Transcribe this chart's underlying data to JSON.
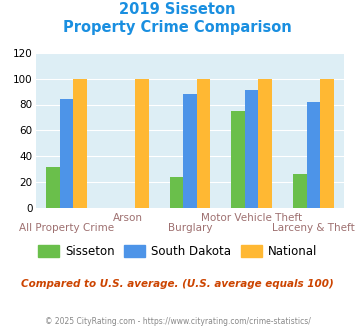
{
  "title_line1": "2019 Sisseton",
  "title_line2": "Property Crime Comparison",
  "title_color": "#1a8fe0",
  "categories": [
    "All Property Crime",
    "Arson",
    "Burglary",
    "Motor Vehicle Theft",
    "Larceny & Theft"
  ],
  "sisseton": [
    32,
    0,
    24,
    75,
    26
  ],
  "south_dakota": [
    84,
    0,
    88,
    91,
    82
  ],
  "national": [
    100,
    100,
    100,
    100,
    100
  ],
  "sisseton_color": "#6abf4b",
  "south_dakota_color": "#4d94e8",
  "national_color": "#ffb833",
  "ylim": [
    0,
    120
  ],
  "yticks": [
    0,
    20,
    40,
    60,
    80,
    100,
    120
  ],
  "background_color": "#ddeef5",
  "xlabel_color": "#9e7070",
  "xlabel_fontsize": 7.5,
  "subtitle_text": "Compared to U.S. average. (U.S. average equals 100)",
  "subtitle_color": "#cc4400",
  "footer_text": "© 2025 CityRating.com - https://www.cityrating.com/crime-statistics/",
  "footer_color": "#888888",
  "legend_labels": [
    "Sisseton",
    "South Dakota",
    "National"
  ],
  "row1_labels": [
    "",
    "Arson",
    "",
    "Motor Vehicle Theft",
    ""
  ],
  "row2_labels": [
    "All Property Crime",
    "",
    "Burglary",
    "",
    "Larceny & Theft"
  ]
}
